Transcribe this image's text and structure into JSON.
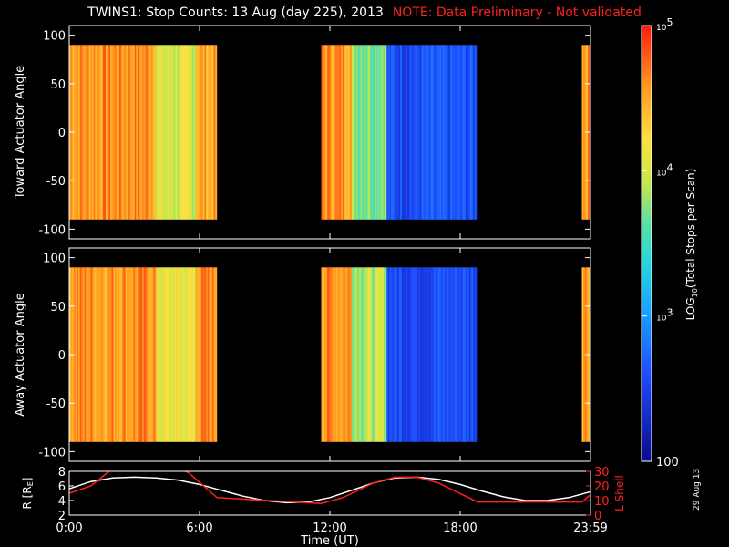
{
  "header": {
    "title": "TWINS1: Stop Counts: 13 Aug (day 225), 2013",
    "note": "NOTE: Data Preliminary - Not validated"
  },
  "stamp": "29 Aug 13",
  "colors": {
    "background": "#000000",
    "axes": "#ffffff",
    "note": "#ff2020",
    "l_shell": "#ff2020"
  },
  "chart_data": [
    {
      "type": "heatmap",
      "ylabel": "Toward Actuator Angle",
      "ylim": [
        -110,
        110
      ],
      "y_ticks": [
        100,
        50,
        0,
        -50,
        -100
      ],
      "xlim": [
        0,
        24
      ],
      "x_ticks": [
        0,
        6,
        12,
        18,
        24
      ],
      "data_y_range": [
        -90,
        90
      ],
      "colorbar": {
        "scale": "log",
        "range": [
          100,
          100000
        ],
        "label": "LOG10(Total Stops per Scan)",
        "tick_labels": [
          "10^5",
          "10^4",
          "10^3",
          "100"
        ]
      },
      "data_intervals_UT": [
        [
          0.0,
          6.8
        ],
        [
          11.6,
          18.8
        ],
        [
          23.6,
          24.0
        ]
      ],
      "approx_log10_counts_profile": [
        {
          "from": 0.0,
          "to": 4.0,
          "log10": 4.6
        },
        {
          "from": 4.0,
          "to": 5.8,
          "log10": 4.0
        },
        {
          "from": 5.8,
          "to": 6.8,
          "log10": 4.5
        },
        {
          "from": 11.6,
          "to": 13.0,
          "log10": 4.6
        },
        {
          "from": 13.0,
          "to": 14.6,
          "log10": 3.8
        },
        {
          "from": 14.6,
          "to": 18.8,
          "log10": 2.6
        },
        {
          "from": 23.6,
          "to": 24.0,
          "log10": 4.6
        }
      ]
    },
    {
      "type": "heatmap",
      "ylabel": "Away Actuator Angle",
      "ylim": [
        -110,
        110
      ],
      "y_ticks": [
        100,
        50,
        0,
        -50,
        -100
      ],
      "xlim": [
        0,
        24
      ],
      "x_ticks": [
        0,
        6,
        12,
        18,
        24
      ],
      "data_y_range": [
        -90,
        90
      ],
      "data_intervals_UT": [
        [
          0.0,
          6.8
        ],
        [
          11.6,
          18.8
        ],
        [
          23.6,
          24.0
        ]
      ],
      "approx_log10_counts_profile": [
        {
          "from": 0.0,
          "to": 4.0,
          "log10": 4.6
        },
        {
          "from": 4.0,
          "to": 5.8,
          "log10": 4.1
        },
        {
          "from": 5.8,
          "to": 6.8,
          "log10": 4.6
        },
        {
          "from": 11.6,
          "to": 13.0,
          "log10": 4.6
        },
        {
          "from": 13.0,
          "to": 14.6,
          "log10": 3.9
        },
        {
          "from": 14.6,
          "to": 18.8,
          "log10": 2.6
        },
        {
          "from": 23.6,
          "to": 24.0,
          "log10": 4.6
        }
      ]
    },
    {
      "type": "line",
      "xlabel": "Time (UT)",
      "x_tick_labels": [
        "0:00",
        "6:00",
        "12:00",
        "18:00",
        "23:59"
      ],
      "x_ticks": [
        0,
        6,
        12,
        18,
        24
      ],
      "xlim": [
        0,
        24
      ],
      "ylabel": "R [R_E]",
      "ylim": [
        2,
        8
      ],
      "y_ticks": [
        2,
        4,
        6,
        8
      ],
      "y2label": "L Shell",
      "y2lim": [
        0,
        30
      ],
      "y2_ticks": [
        0,
        10,
        20,
        30
      ],
      "series": [
        {
          "name": "R",
          "axis": "left",
          "color": "#ffffff",
          "x": [
            0,
            1,
            2,
            3,
            4,
            5,
            6,
            7,
            8,
            9,
            10,
            11,
            12,
            13,
            14,
            15,
            16,
            17,
            18,
            19,
            20,
            21,
            22,
            23,
            24
          ],
          "values": [
            5.6,
            6.6,
            7.1,
            7.2,
            7.1,
            6.8,
            6.2,
            5.4,
            4.6,
            4.0,
            3.7,
            3.8,
            4.4,
            5.4,
            6.4,
            7.1,
            7.2,
            6.9,
            6.2,
            5.3,
            4.5,
            4.0,
            4.0,
            4.4,
            5.2
          ]
        },
        {
          "name": "L Shell",
          "axis": "right",
          "color": "#ff2020",
          "x": [
            0,
            1,
            2,
            3,
            4,
            5,
            5.5,
            6.8,
            11.6,
            12.6,
            14.0,
            15.0,
            16.0,
            17.0,
            18.8,
            23.6,
            24.0
          ],
          "values": [
            15.0,
            20.0,
            32.0,
            32.0,
            32.0,
            32.0,
            29.0,
            12.0,
            8.0,
            12.0,
            22.0,
            26.0,
            26.0,
            22.0,
            9.0,
            9.0,
            14.0
          ]
        }
      ]
    }
  ]
}
